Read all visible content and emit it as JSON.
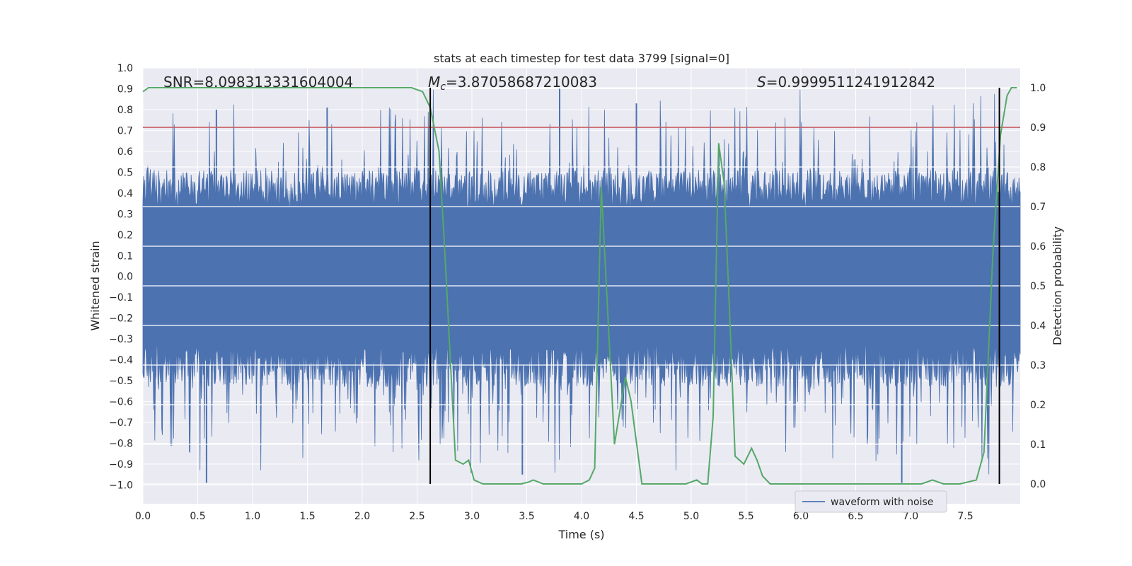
{
  "chart_data": {
    "type": "line",
    "title": "stats at each timestep for test data 3799 [signal=0]",
    "xlabel": "Time (s)",
    "ylabel": "Whitened strain",
    "y2label": "Detection probability",
    "xlim": [
      0.0,
      8.0
    ],
    "ylim": [
      -1.09,
      1.0
    ],
    "y2lim": [
      -0.05,
      1.05
    ],
    "xticks": [
      "0.0",
      "0.5",
      "1.0",
      "1.5",
      "2.0",
      "2.5",
      "3.0",
      "3.5",
      "4.0",
      "4.5",
      "5.0",
      "5.5",
      "6.0",
      "6.5",
      "7.0",
      "7.5"
    ],
    "xtick_values": [
      0.0,
      0.5,
      1.0,
      1.5,
      2.0,
      2.5,
      3.0,
      3.5,
      4.0,
      4.5,
      5.0,
      5.5,
      6.0,
      6.5,
      7.0,
      7.5
    ],
    "yticks": [
      "1.0",
      "0.9",
      "0.8",
      "0.7",
      "0.6",
      "0.5",
      "0.4",
      "0.3",
      "0.2",
      "0.1",
      "0.0",
      "−0.1",
      "−0.2",
      "−0.3",
      "−0.4",
      "−0.5",
      "−0.6",
      "−0.7",
      "−0.8",
      "−0.9",
      "−1.0"
    ],
    "ytick_values": [
      1.0,
      0.9,
      0.8,
      0.7,
      0.6,
      0.5,
      0.4,
      0.3,
      0.2,
      0.1,
      0.0,
      -0.1,
      -0.2,
      -0.3,
      -0.4,
      -0.5,
      -0.6,
      -0.7,
      -0.8,
      -0.9,
      -1.0
    ],
    "y2ticks": [
      "1.0",
      "0.9",
      "0.8",
      "0.7",
      "0.6",
      "0.5",
      "0.4",
      "0.3",
      "0.2",
      "0.1",
      "0.0"
    ],
    "y2tick_values": [
      1.0,
      0.9,
      0.8,
      0.7,
      0.6,
      0.5,
      0.4,
      0.3,
      0.2,
      0.1,
      0.0
    ],
    "annotations": {
      "snr": "SNR=8.098313331604004",
      "mc_symbol": "M",
      "mc_sub": "c",
      "mc_value": "=3.87058687210083",
      "s_symbol": "S",
      "s_value": "=0.9999511241912842"
    },
    "series": [
      {
        "name": "waveform with noise",
        "color": "#4c72b0",
        "kind": "noise",
        "amplitude_core": 0.33,
        "peak_max": 0.9,
        "trough_min": -0.99
      },
      {
        "name": "detection probability",
        "color": "#55a868",
        "axis": "right",
        "x": [
          0.0,
          0.05,
          0.1,
          0.5,
          1.0,
          1.5,
          2.0,
          2.3,
          2.45,
          2.55,
          2.62,
          2.7,
          2.75,
          2.85,
          2.92,
          2.97,
          3.02,
          3.1,
          3.3,
          3.45,
          3.52,
          3.56,
          3.65,
          3.8,
          4.0,
          4.07,
          4.12,
          4.18,
          4.3,
          4.4,
          4.45,
          4.55,
          4.65,
          4.8,
          4.95,
          5.05,
          5.1,
          5.15,
          5.2,
          5.25,
          5.3,
          5.35,
          5.4,
          5.48,
          5.55,
          5.6,
          5.65,
          5.72,
          6.0,
          6.3,
          6.5,
          6.9,
          7.1,
          7.2,
          7.3,
          7.45,
          7.6,
          7.67,
          7.75,
          7.82,
          7.88,
          7.92,
          7.97
        ],
        "values": [
          0.99,
          1.0,
          1.0,
          1.0,
          1.0,
          1.0,
          1.0,
          1.0,
          1.0,
          0.99,
          0.95,
          0.84,
          0.6,
          0.06,
          0.05,
          0.06,
          0.01,
          0.0,
          0.0,
          0.0,
          0.005,
          0.01,
          0.0,
          0.0,
          0.0,
          0.01,
          0.04,
          0.75,
          0.1,
          0.27,
          0.21,
          0.0,
          0.0,
          0.0,
          0.0,
          0.01,
          0.0,
          0.0,
          0.17,
          0.86,
          0.76,
          0.43,
          0.07,
          0.05,
          0.09,
          0.06,
          0.02,
          0.0,
          0.0,
          0.0,
          0.0,
          0.0,
          0.0,
          0.01,
          0.0,
          0.0,
          0.01,
          0.08,
          0.58,
          0.88,
          0.98,
          1.0,
          1.0
        ]
      }
    ],
    "thresholds": [
      {
        "name": "threshold-line",
        "color": "#c44e52",
        "y": 0.9,
        "axis": "right"
      }
    ],
    "vlines": [
      2.62,
      7.81
    ],
    "vline_color": "#000000",
    "legend": {
      "location": "bottom-right",
      "label": "waveform with noise"
    }
  }
}
